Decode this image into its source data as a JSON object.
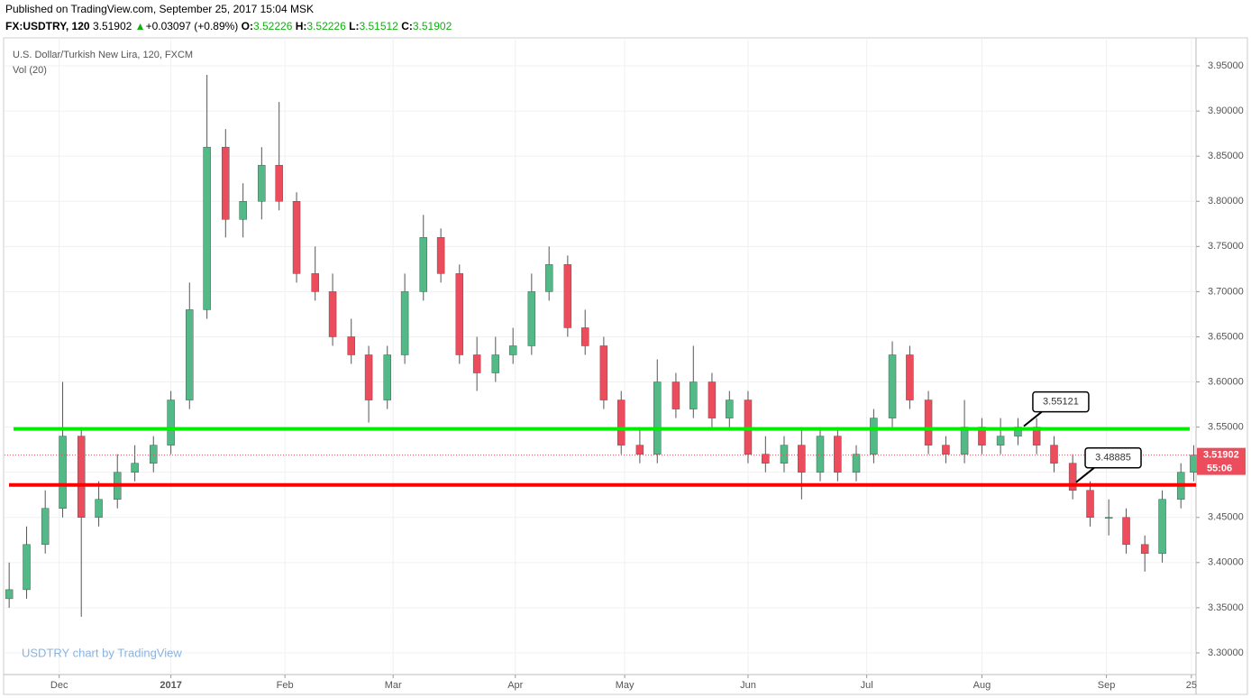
{
  "header": {
    "published": "Published on TradingView.com, September 25, 2017 15:04 MSK",
    "symbol": "FX:USDTRY, 120",
    "last": "3.51902",
    "arrow": "▲",
    "change": "+0.03097 (+0.89%)",
    "ohlc": [
      {
        "label": "O:",
        "value": "3.52226"
      },
      {
        "label": "H:",
        "value": "3.52226"
      },
      {
        "label": "L:",
        "value": "3.51512"
      },
      {
        "label": "C:",
        "value": "3.51902"
      }
    ]
  },
  "chart_data": {
    "type": "candlestick",
    "title": "U.S. Dollar/Turkish New Lira, 120, FXCM",
    "subtitle": "Vol (20)",
    "watermark": "USDTRY chart by TradingView",
    "up_color": "#53b987",
    "down_color": "#eb4d5c",
    "wick_color": "#555555",
    "x": [
      -0.43,
      -0.28,
      -0.12,
      0.03,
      0.19,
      0.34,
      0.5,
      0.65,
      0.81,
      0.96,
      1.12,
      1.27,
      1.43,
      1.58,
      1.74,
      1.89,
      2.04,
      2.2,
      2.35,
      2.51,
      2.66,
      2.82,
      2.97,
      3.13,
      3.28,
      3.44,
      3.59,
      3.75,
      3.9,
      4.06,
      4.21,
      4.37,
      4.52,
      4.68,
      4.83,
      4.99,
      5.14,
      5.3,
      5.45,
      5.61,
      5.76,
      5.92,
      6.07,
      6.23,
      6.38,
      6.54,
      6.69,
      6.85,
      7.0,
      7.16,
      7.31,
      7.47,
      7.62,
      7.78,
      7.93,
      8.09,
      8.24,
      8.4,
      8.55,
      8.71,
      8.86,
      9.02,
      9.17,
      9.33,
      9.48,
      9.64,
      9.75
    ],
    "open": [
      3.36,
      3.37,
      3.42,
      3.46,
      3.54,
      3.45,
      3.47,
      3.5,
      3.51,
      3.53,
      3.58,
      3.68,
      3.86,
      3.78,
      3.8,
      3.84,
      3.8,
      3.72,
      3.7,
      3.65,
      3.63,
      3.58,
      3.63,
      3.7,
      3.76,
      3.72,
      3.63,
      3.61,
      3.63,
      3.64,
      3.7,
      3.73,
      3.66,
      3.64,
      3.58,
      3.53,
      3.52,
      3.6,
      3.57,
      3.6,
      3.56,
      3.58,
      3.52,
      3.51,
      3.53,
      3.5,
      3.54,
      3.5,
      3.52,
      3.56,
      3.63,
      3.58,
      3.53,
      3.52,
      3.55,
      3.53,
      3.54,
      3.55,
      3.53,
      3.51,
      3.48,
      3.45,
      3.45,
      3.42,
      3.41,
      3.47,
      3.5
    ],
    "high": [
      3.4,
      3.44,
      3.48,
      3.6,
      3.55,
      3.49,
      3.52,
      3.53,
      3.54,
      3.59,
      3.71,
      3.94,
      3.88,
      3.82,
      3.86,
      3.91,
      3.81,
      3.75,
      3.72,
      3.67,
      3.64,
      3.64,
      3.72,
      3.785,
      3.77,
      3.73,
      3.65,
      3.65,
      3.66,
      3.72,
      3.75,
      3.74,
      3.68,
      3.65,
      3.59,
      3.55,
      3.625,
      3.61,
      3.64,
      3.61,
      3.59,
      3.59,
      3.54,
      3.54,
      3.55,
      3.55,
      3.55,
      3.53,
      3.57,
      3.645,
      3.64,
      3.59,
      3.54,
      3.58,
      3.56,
      3.56,
      3.56,
      3.56,
      3.54,
      3.52,
      3.49,
      3.47,
      3.46,
      3.43,
      3.48,
      3.51,
      3.53
    ],
    "low": [
      3.35,
      3.36,
      3.41,
      3.45,
      3.34,
      3.44,
      3.46,
      3.49,
      3.5,
      3.52,
      3.57,
      3.67,
      3.76,
      3.76,
      3.78,
      3.79,
      3.71,
      3.69,
      3.64,
      3.62,
      3.555,
      3.57,
      3.62,
      3.69,
      3.71,
      3.62,
      3.59,
      3.6,
      3.62,
      3.63,
      3.69,
      3.65,
      3.63,
      3.57,
      3.52,
      3.51,
      3.51,
      3.56,
      3.56,
      3.55,
      3.55,
      3.51,
      3.5,
      3.5,
      3.47,
      3.49,
      3.49,
      3.49,
      3.51,
      3.55,
      3.57,
      3.52,
      3.51,
      3.51,
      3.52,
      3.52,
      3.53,
      3.52,
      3.5,
      3.47,
      3.44,
      3.43,
      3.41,
      3.39,
      3.4,
      3.46,
      3.49
    ],
    "close": [
      3.37,
      3.42,
      3.46,
      3.54,
      3.45,
      3.47,
      3.5,
      3.51,
      3.53,
      3.58,
      3.68,
      3.86,
      3.78,
      3.8,
      3.84,
      3.8,
      3.72,
      3.7,
      3.65,
      3.63,
      3.58,
      3.63,
      3.7,
      3.76,
      3.72,
      3.63,
      3.61,
      3.63,
      3.64,
      3.7,
      3.73,
      3.66,
      3.64,
      3.58,
      3.53,
      3.52,
      3.6,
      3.57,
      3.6,
      3.56,
      3.58,
      3.52,
      3.51,
      3.53,
      3.5,
      3.54,
      3.5,
      3.52,
      3.56,
      3.63,
      3.58,
      3.53,
      3.52,
      3.55,
      3.53,
      3.54,
      3.55,
      3.53,
      3.51,
      3.48,
      3.45,
      3.45,
      3.42,
      3.41,
      3.47,
      3.5,
      3.519
    ],
    "xlim": [
      -0.47,
      9.77
    ],
    "xticks": [
      {
        "value": 0,
        "label": "Dec"
      },
      {
        "value": 0.96,
        "label": "2017"
      },
      {
        "value": 1.94,
        "label": "Feb"
      },
      {
        "value": 2.87,
        "label": "Mar"
      },
      {
        "value": 3.92,
        "label": "Apr"
      },
      {
        "value": 4.86,
        "label": "May"
      },
      {
        "value": 5.92,
        "label": "Jun"
      },
      {
        "value": 6.94,
        "label": "Jul"
      },
      {
        "value": 7.93,
        "label": "Aug"
      },
      {
        "value": 9.0,
        "label": "Sep"
      },
      {
        "value": 9.73,
        "label": "25"
      }
    ],
    "ylim": [
      3.276,
      3.981
    ],
    "yticks": [
      {
        "value": 3.3,
        "label": "3.30000"
      },
      {
        "value": 3.35,
        "label": "3.35000"
      },
      {
        "value": 3.4,
        "label": "3.40000"
      },
      {
        "value": 3.45,
        "label": "3.45000"
      },
      {
        "value": 3.5,
        "label": "3.50000"
      },
      {
        "value": 3.55,
        "label": "3.55000"
      },
      {
        "value": 3.6,
        "label": "3.60000"
      },
      {
        "value": 3.65,
        "label": "3.65000"
      },
      {
        "value": 3.7,
        "label": "3.70000"
      },
      {
        "value": 3.75,
        "label": "3.75000"
      },
      {
        "value": 3.8,
        "label": "3.80000"
      },
      {
        "value": 3.85,
        "label": "3.85000"
      },
      {
        "value": 3.9,
        "label": "3.90000"
      },
      {
        "value": 3.95,
        "label": "3.95000"
      }
    ],
    "grid": true,
    "hlines": [
      {
        "value": 3.548,
        "color": "#00ee00"
      },
      {
        "value": 3.486,
        "color": "#ff0000"
      }
    ],
    "annotations": [
      {
        "label": "3.55121",
        "x": 8.29,
        "y": 3.551
      },
      {
        "label": "3.48885",
        "x": 8.74,
        "y": 3.489
      }
    ],
    "last_price": {
      "value": 3.51902,
      "label": "3.51902",
      "countdown": "55:06",
      "color": "#eb4d5c"
    }
  }
}
